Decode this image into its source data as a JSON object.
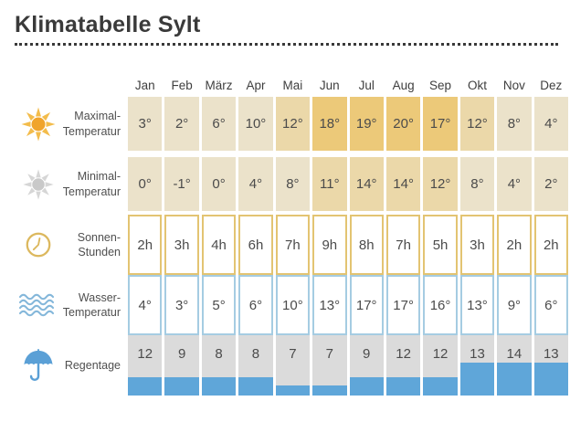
{
  "title": "Klimatabelle Sylt",
  "months": [
    "Jan",
    "Feb",
    "März",
    "Apr",
    "Mai",
    "Jun",
    "Jul",
    "Aug",
    "Sep",
    "Okt",
    "Nov",
    "Dez"
  ],
  "rows": [
    {
      "label1": "Maximal-",
      "label2": "Temperatur",
      "icon": "sun-icon",
      "style": "heat",
      "suffix": "°",
      "values": [
        3,
        2,
        6,
        10,
        12,
        18,
        19,
        20,
        17,
        12,
        8,
        4
      ]
    },
    {
      "label1": "Minimal-",
      "label2": "Temperatur",
      "icon": "sun-dim-icon",
      "style": "heat",
      "suffix": "°",
      "values": [
        0,
        -1,
        0,
        4,
        8,
        11,
        14,
        14,
        12,
        8,
        4,
        2
      ]
    },
    {
      "label1": "Sonnen-",
      "label2": "Stunden",
      "icon": "clock-icon",
      "style": "outline-gold",
      "suffix": "h",
      "values": [
        2,
        3,
        4,
        6,
        7,
        9,
        8,
        7,
        5,
        3,
        2,
        2
      ]
    },
    {
      "label1": "Wasser-",
      "label2": "Temperatur",
      "icon": "waves-icon",
      "style": "outline-blue",
      "suffix": "°",
      "values": [
        4,
        3,
        5,
        6,
        10,
        13,
        17,
        17,
        16,
        13,
        9,
        6
      ]
    },
    {
      "label1": "Regentage",
      "label2": "",
      "icon": "umbrella-icon",
      "style": "rain",
      "suffix": "",
      "values": [
        12,
        9,
        8,
        8,
        7,
        7,
        9,
        12,
        12,
        13,
        14,
        13
      ]
    }
  ],
  "colors": {
    "heat_low": "#ebe2ca",
    "heat_mid": "#ebd8a9",
    "heat_high": "#ecc979",
    "sun_border": "#e3c472",
    "water_border": "#a5cce2",
    "rain_bg": "#dbdbdb",
    "rain_fill": "#5fa6d9",
    "accent_sun": "#f0a42c",
    "accent_sun_ray": "#f3bc4b",
    "accent_gray": "#c9c9c9",
    "accent_blue": "#5ba0d6",
    "accent_wave": "#84b7da",
    "accent_clock": "#dcb85e",
    "text": "#3a3a3a"
  },
  "chart_data": {
    "type": "table",
    "title": "Klimatabelle Sylt",
    "categories": [
      "Jan",
      "Feb",
      "März",
      "Apr",
      "Mai",
      "Jun",
      "Jul",
      "Aug",
      "Sep",
      "Okt",
      "Nov",
      "Dez"
    ],
    "series": [
      {
        "name": "Maximal-Temperatur",
        "unit": "°C",
        "values": [
          3,
          2,
          6,
          10,
          12,
          18,
          19,
          20,
          17,
          12,
          8,
          4
        ]
      },
      {
        "name": "Minimal-Temperatur",
        "unit": "°C",
        "values": [
          0,
          -1,
          0,
          4,
          8,
          11,
          14,
          14,
          12,
          8,
          4,
          2
        ]
      },
      {
        "name": "Sonnen-Stunden",
        "unit": "h",
        "values": [
          2,
          3,
          4,
          6,
          7,
          9,
          8,
          7,
          5,
          3,
          2,
          2
        ]
      },
      {
        "name": "Wasser-Temperatur",
        "unit": "°C",
        "values": [
          4,
          3,
          5,
          6,
          10,
          13,
          17,
          17,
          16,
          13,
          9,
          6
        ]
      },
      {
        "name": "Regentage",
        "unit": "Tage",
        "values": [
          12,
          9,
          8,
          8,
          7,
          7,
          9,
          12,
          12,
          13,
          14,
          13
        ]
      }
    ],
    "layout": {
      "heatmap_on_temperature_rows": true,
      "rain_bar_fill_from_bottom": true
    }
  }
}
